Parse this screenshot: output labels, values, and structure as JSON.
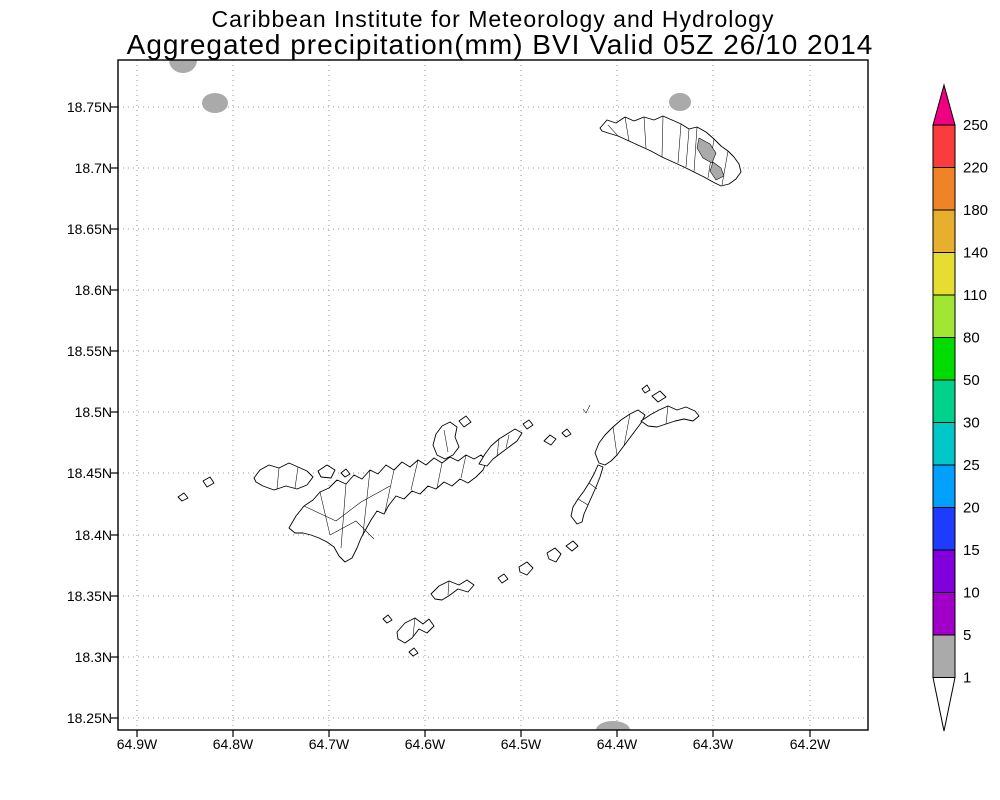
{
  "title": {
    "line1": "Caribbean Institute for Meteorology and Hydrology",
    "line2": "Aggregated precipitation(mm) BVI Valid 05Z 26/10 2014"
  },
  "axes": {
    "y_tick_labels": [
      "18.75N",
      "18.7N",
      "18.65N",
      "18.6N",
      "18.55N",
      "18.5N",
      "18.45N",
      "18.4N",
      "18.35N",
      "18.3N",
      "18.25N"
    ],
    "x_tick_labels": [
      "64.9W",
      "64.8W",
      "64.7W",
      "64.6W",
      "64.5W",
      "64.4W",
      "64.3W",
      "64.2W"
    ]
  },
  "colorbar": {
    "labels_top_to_bottom": [
      "250",
      "220",
      "180",
      "140",
      "110",
      "80",
      "50",
      "30",
      "25",
      "20",
      "15",
      "10",
      "5",
      "1"
    ],
    "segment_colors_top_to_bottom": [
      "#fa3c3c",
      "#f08228",
      "#e6af2d",
      "#e6dc32",
      "#a0e632",
      "#00dc00",
      "#00d28c",
      "#00c8c8",
      "#00a0ff",
      "#1e3cff",
      "#8200dc",
      "#a000c8",
      "#aaaaaa"
    ],
    "above_max_color": "#f00082",
    "below_min_color": "#ffffff"
  },
  "map_colors": {
    "land_fill": "#ffffff",
    "coast_outline": "#000000",
    "light_precip_gray": "#aaaaaa",
    "grid_color": "#999999"
  },
  "chart_data": {
    "type": "map",
    "institution": "Caribbean Institute for Meteorology and Hydrology",
    "title": "Aggregated precipitation(mm) BVI Valid 05Z 26/10 2014",
    "x_axis": {
      "quantity": "longitude",
      "ticks": [
        "64.9W",
        "64.8W",
        "64.7W",
        "64.6W",
        "64.5W",
        "64.4W",
        "64.3W",
        "64.2W"
      ]
    },
    "y_axis": {
      "quantity": "latitude",
      "ticks": [
        "18.75N",
        "18.7N",
        "18.65N",
        "18.6N",
        "18.55N",
        "18.5N",
        "18.45N",
        "18.4N",
        "18.35N",
        "18.3N",
        "18.25N"
      ]
    },
    "colorscale_levels_mm": [
      1,
      5,
      10,
      15,
      20,
      25,
      30,
      50,
      80,
      110,
      140,
      180,
      220,
      250
    ],
    "grid": "dotted, every 0.1 deg lon / 0.05 deg lat",
    "legend_position": "right vertical colorbar with end arrows",
    "content_summary": "BVI island catchment polygons drawn mostly white (< 1 mm); a few small gray patches in the 1-5 mm band near 18.76N 64.8W, 18.75N 64.34W, 18.25N 64.4W and on eastern Anegada"
  }
}
